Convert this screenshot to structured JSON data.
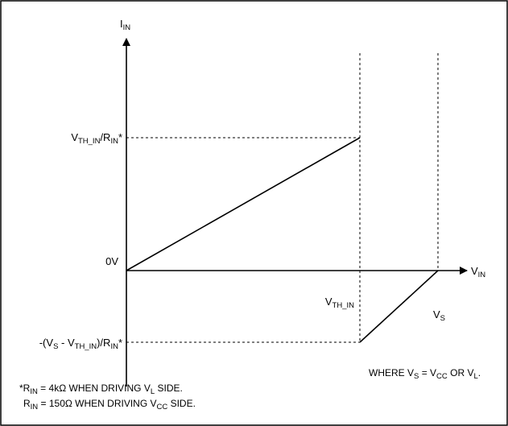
{
  "diagram": {
    "y_axis": {
      "main": "I",
      "sub": "IN"
    },
    "x_axis": {
      "main": "V",
      "sub": "IN"
    },
    "labels": {
      "upper_level": [
        {
          "t": "V",
          "s": false
        },
        {
          "t": "TH_IN",
          "s": true
        },
        {
          "t": "/R",
          "s": false
        },
        {
          "t": "IN",
          "s": true
        },
        {
          "t": "*",
          "s": false
        }
      ],
      "zero": [
        {
          "t": "0V",
          "s": false
        }
      ],
      "lower_level": [
        {
          "t": "-(V",
          "s": false
        },
        {
          "t": "S",
          "s": true
        },
        {
          "t": " - V",
          "s": false
        },
        {
          "t": "TH_IN",
          "s": true
        },
        {
          "t": ")/R",
          "s": false
        },
        {
          "t": "IN",
          "s": true
        },
        {
          "t": "*",
          "s": false
        }
      ],
      "vth_marker": [
        {
          "t": "V",
          "s": false
        },
        {
          "t": "TH_IN",
          "s": true
        }
      ],
      "vs_marker": [
        {
          "t": "V",
          "s": false
        },
        {
          "t": "S",
          "s": true
        }
      ],
      "where_note": [
        {
          "t": "WHERE V",
          "s": false
        },
        {
          "t": "S",
          "s": true
        },
        {
          "t": " = V",
          "s": false
        },
        {
          "t": "CC",
          "s": true
        },
        {
          "t": " OR V",
          "s": false
        },
        {
          "t": "L",
          "s": true
        },
        {
          "t": ".",
          "s": false
        }
      ],
      "footnote_1": [
        {
          "t": "*R",
          "s": false
        },
        {
          "t": "IN",
          "s": true
        },
        {
          "t": " = 4kΩ WHEN DRIVING V",
          "s": false
        },
        {
          "t": "L",
          "s": true
        },
        {
          "t": " SIDE.",
          "s": false
        }
      ],
      "footnote_2": [
        {
          "t": "R",
          "s": false
        },
        {
          "t": "IN",
          "s": true
        },
        {
          "t": " = 150Ω WHEN DRIVING V",
          "s": false
        },
        {
          "t": "CC",
          "s": true
        },
        {
          "t": " SIDE.",
          "s": false
        }
      ]
    },
    "colors": {
      "line": "#000000",
      "background": "#ffffff"
    }
  }
}
